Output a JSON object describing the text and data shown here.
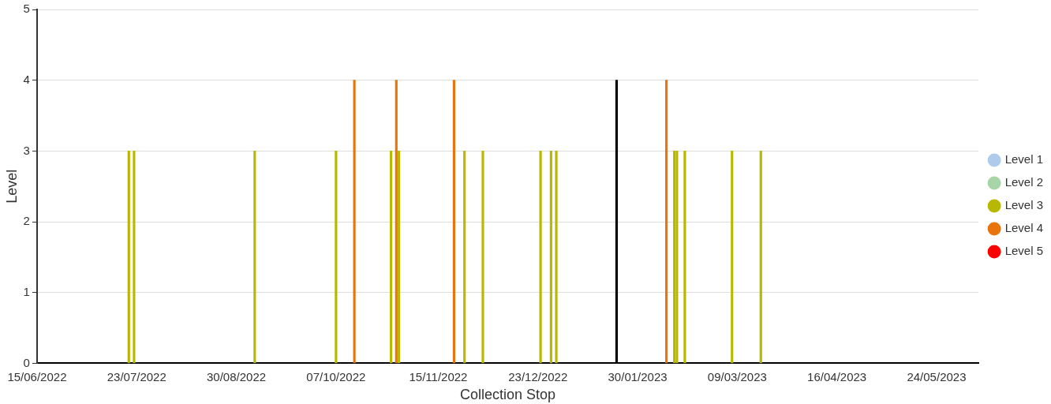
{
  "chart_data": {
    "type": "bar",
    "xlabel": "Collection Stop",
    "ylabel": "Level",
    "xlim": [
      "2022-06-15",
      "2023-06-09"
    ],
    "xticks": [
      {
        "value": "2022-06-15",
        "label": "15/06/2022"
      },
      {
        "value": "2022-07-23",
        "label": "23/07/2022"
      },
      {
        "value": "2022-08-30",
        "label": "30/08/2022"
      },
      {
        "value": "2022-10-07",
        "label": "07/10/2022"
      },
      {
        "value": "2022-11-15",
        "label": "15/11/2022"
      },
      {
        "value": "2022-12-23",
        "label": "23/12/2022"
      },
      {
        "value": "2023-01-30",
        "label": "30/01/2023"
      },
      {
        "value": "2023-03-09",
        "label": "09/03/2023"
      },
      {
        "value": "2023-04-16",
        "label": "16/04/2023"
      },
      {
        "value": "2023-05-24",
        "label": "24/05/2023"
      }
    ],
    "ylim": [
      0,
      5
    ],
    "yticks": [
      0,
      1,
      2,
      3,
      4,
      5
    ],
    "grid": "y",
    "legend": "right",
    "series": [
      {
        "name": "Level 1",
        "color": "#aecbeb"
      },
      {
        "name": "Level 2",
        "color": "#a8d5a8"
      },
      {
        "name": "Level 3",
        "color": "#b8b800",
        "x": [
          "2022-07-20",
          "2022-07-22",
          "2022-09-06",
          "2022-10-07",
          "2022-10-28",
          "2022-10-31",
          "2022-11-25",
          "2022-12-02",
          "2022-12-24",
          "2022-12-28",
          "2022-12-30",
          "2023-02-13",
          "2023-02-14",
          "2023-02-17",
          "2023-03-07",
          "2023-03-18"
        ],
        "values": [
          3,
          3,
          3,
          3,
          3,
          3,
          3,
          3,
          3,
          3,
          3,
          3,
          3,
          3,
          3,
          3
        ]
      },
      {
        "name": "Level 4",
        "color": "#e8740c",
        "x": [
          "2022-10-14",
          "2022-10-30",
          "2022-11-21",
          "2023-02-10"
        ],
        "values": [
          4,
          4,
          4,
          4
        ]
      },
      {
        "name": "Level 5",
        "color": "#ff0000"
      },
      {
        "color": "#000000",
        "x": [
          "2023-01-22"
        ],
        "values": [
          4
        ]
      }
    ]
  }
}
